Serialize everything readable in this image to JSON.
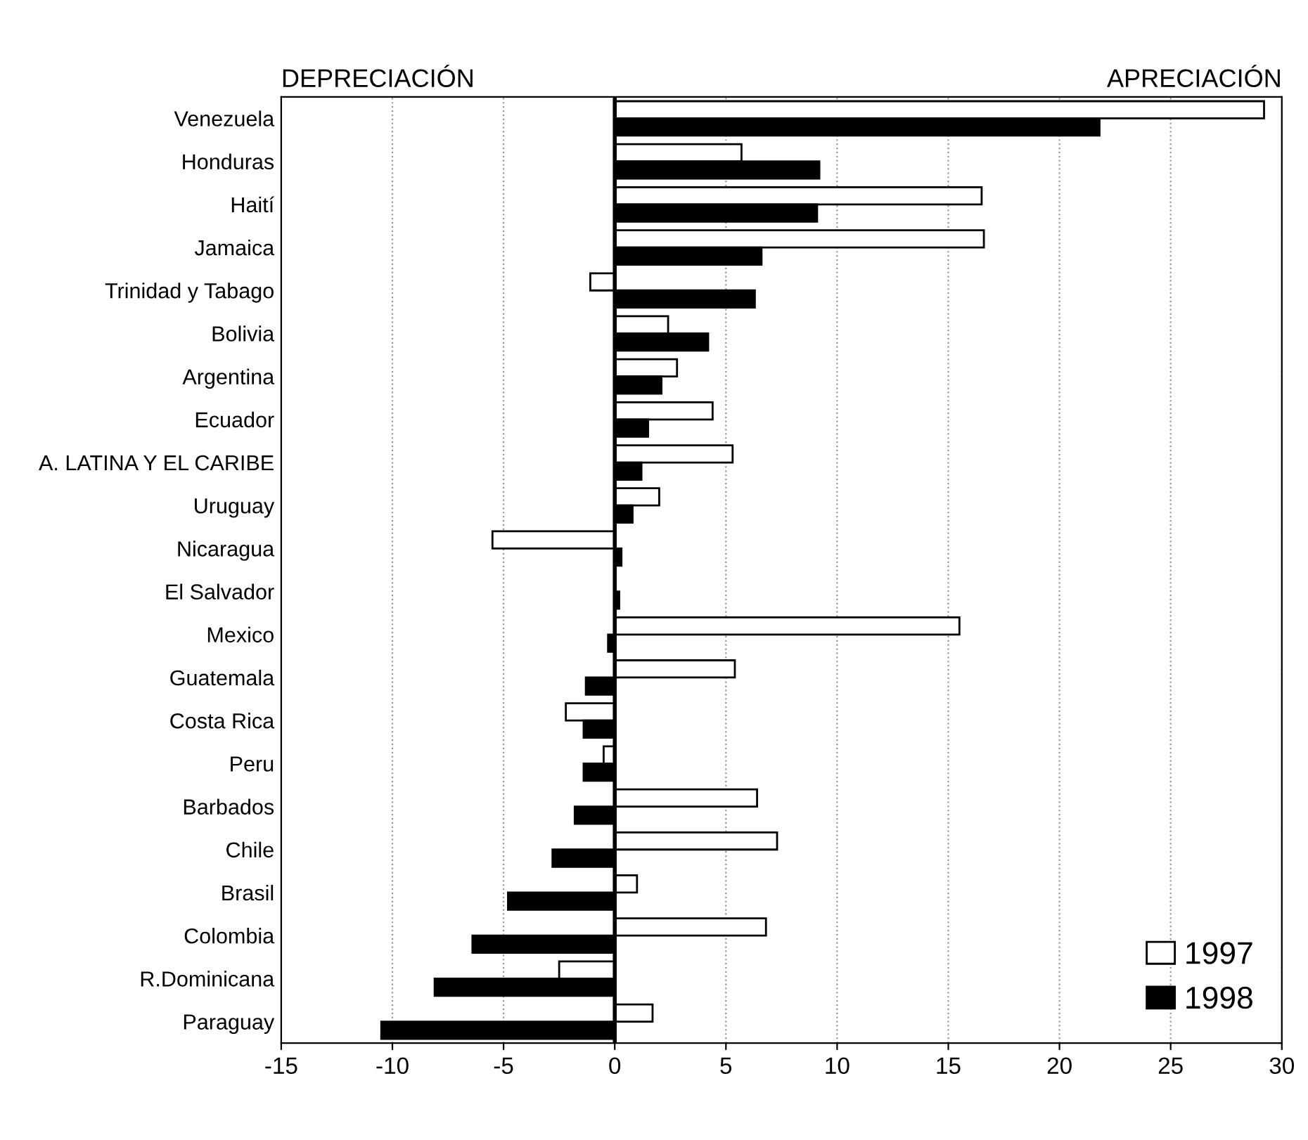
{
  "chart_data": {
    "type": "bar",
    "orientation": "horizontal",
    "annotations": [
      "DEPRECIACIÓN",
      "APRECIACIÓN"
    ],
    "categories": [
      "Venezuela",
      "Honduras",
      "Haití",
      "Jamaica",
      "Trinidad y Tabago",
      "Bolivia",
      "Argentina",
      "Ecuador",
      "A. LATINA Y EL CARIBE",
      "Uruguay",
      "Nicaragua",
      "El Salvador",
      "Mexico",
      "Guatemala",
      "Costa Rica",
      "Peru",
      "Barbados",
      "Chile",
      "Brasil",
      "Colombia",
      "R.Dominicana",
      "Paraguay"
    ],
    "series": [
      {
        "name": "1997",
        "color": "#ffffff",
        "values": [
          29.2,
          5.7,
          16.5,
          16.6,
          -1.1,
          2.4,
          2.8,
          4.4,
          5.3,
          2.0,
          -5.5,
          null,
          15.5,
          5.4,
          -2.2,
          -0.5,
          6.4,
          7.3,
          1.0,
          6.8,
          -2.5,
          1.7
        ]
      },
      {
        "name": "1998",
        "color": "#000000",
        "values": [
          21.8,
          9.2,
          9.1,
          6.6,
          6.3,
          4.2,
          2.1,
          1.5,
          1.2,
          0.8,
          0.3,
          0.2,
          -0.3,
          -1.3,
          -1.4,
          -1.4,
          -1.8,
          -2.8,
          -4.8,
          -6.4,
          -8.1,
          -10.5
        ]
      }
    ],
    "xlim": [
      -15,
      30
    ],
    "xticks": [
      -15,
      -10,
      -5,
      0,
      5,
      10,
      15,
      20,
      25,
      30
    ],
    "grid": "x",
    "legend": "bottom right"
  }
}
